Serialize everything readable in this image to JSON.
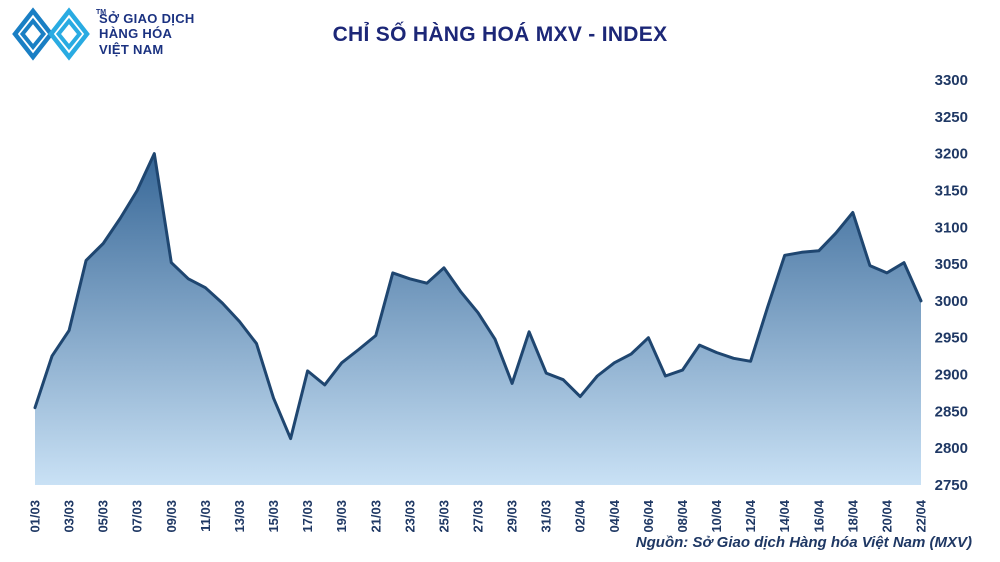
{
  "logo": {
    "line1": "SỞ GIAO DỊCH",
    "line2": "HÀNG HÓA",
    "line3": "VIỆT NAM",
    "tm": "TM"
  },
  "title": "CHỈ SỐ HÀNG HOÁ MXV - INDEX",
  "source": "Nguồn: Sở Giao dịch Hàng hóa Việt Nam (MXV)",
  "colors": {
    "brand_navy": "#1B3281",
    "title_navy": "#1C2777",
    "axis_navy": "#1F3864",
    "logo_cyan": "#29ABE2",
    "logo_cyan_dark": "#1A7FC4"
  },
  "chart_data": {
    "type": "area",
    "title": "CHỈ SỐ HÀNG HOÁ MXV - INDEX",
    "xlabel": "",
    "ylabel": "",
    "grid": false,
    "legend": "none",
    "y_axis_side": "right",
    "x_labels_rotation": -90,
    "ylim": [
      2750,
      3300
    ],
    "yticks": [
      2750,
      2800,
      2850,
      2900,
      2950,
      3000,
      3050,
      3100,
      3150,
      3200,
      3250,
      3300
    ],
    "x": [
      "01/03",
      "02/03",
      "03/03",
      "04/03",
      "05/03",
      "06/03",
      "07/03",
      "08/03",
      "09/03",
      "10/03",
      "11/03",
      "12/03",
      "13/03",
      "14/03",
      "15/03",
      "16/03",
      "17/03",
      "18/03",
      "19/03",
      "20/03",
      "21/03",
      "22/03",
      "23/03",
      "24/03",
      "25/03",
      "26/03",
      "27/03",
      "28/03",
      "29/03",
      "30/03",
      "31/03",
      "01/04",
      "02/04",
      "03/04",
      "04/04",
      "05/04",
      "06/04",
      "07/04",
      "08/04",
      "09/04",
      "10/04",
      "11/04",
      "12/04",
      "13/04",
      "14/04",
      "15/04",
      "16/04",
      "17/04",
      "18/04",
      "19/04",
      "20/04",
      "21/04",
      "22/04"
    ],
    "xtick_labels": [
      "01/03",
      "03/03",
      "05/03",
      "07/03",
      "09/03",
      "11/03",
      "13/03",
      "15/03",
      "17/03",
      "19/03",
      "21/03",
      "23/03",
      "25/03",
      "27/03",
      "29/03",
      "31/03",
      "02/04",
      "04/04",
      "06/04",
      "08/04",
      "10/04",
      "12/04",
      "14/04",
      "16/04",
      "18/04",
      "20/04",
      "22/04"
    ],
    "values": [
      2855,
      2925,
      2960,
      3055,
      3078,
      3112,
      3150,
      3200,
      3052,
      3030,
      3018,
      2997,
      2972,
      2942,
      2868,
      2813,
      2905,
      2886,
      2916,
      2934,
      2953,
      3038,
      3030,
      3024,
      3045,
      3012,
      2984,
      2948,
      2888,
      2958,
      2902,
      2893,
      2870,
      2898,
      2916,
      2928,
      2950,
      2898,
      2906,
      2940,
      2930,
      2922,
      2918,
      2992,
      3062,
      3066,
      3068,
      3092,
      3120,
      3048,
      3038,
      3052,
      3000
    ],
    "line_color": "#1F4670",
    "fill_gradient": [
      "#376797",
      "#C9E1F5"
    ]
  }
}
